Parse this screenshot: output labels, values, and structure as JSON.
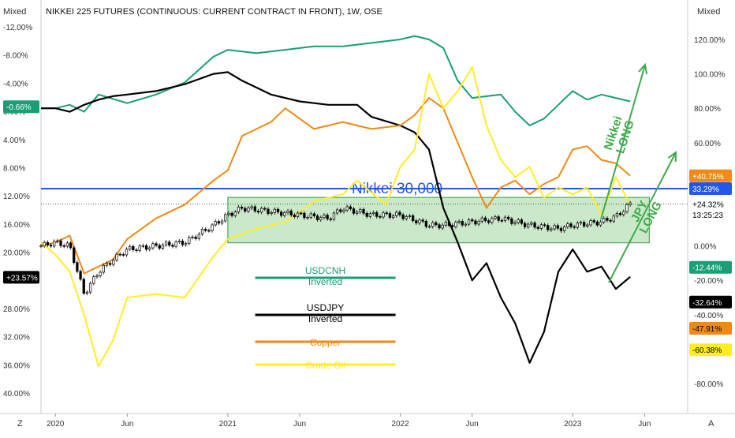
{
  "title": "NIKKEI 225 FUTURES (CONTINUOUS: CURRENT CONTRACT IN FRONT), 1W, OSE",
  "left_scale_label": "Mixed",
  "right_scale_label": "Mixed",
  "corner_left": "Z",
  "corner_right": "A",
  "colors": {
    "usdcnh": "#1a9e75",
    "usdjpy": "#000000",
    "copper": "#f08a14",
    "crude": "#ffee22",
    "candle": "#000000",
    "nikkei_line": "#2357e6",
    "box_fill": "#9fd69f",
    "box_stroke": "#2e9e3e",
    "arrow": "#3faa4b",
    "right_last_nikkei_bg": "#000000",
    "right_last_nikkei_line_bg": "#2357e6"
  },
  "annotations": {
    "nikkei_level": "Nikkei 30,000",
    "arrow1_text": [
      "Nikkei",
      "LONG"
    ],
    "arrow2_text": [
      "JPY",
      "LONG"
    ]
  },
  "legend": [
    {
      "key": "usdcnh",
      "lines": [
        "USDCNH",
        "Inverted"
      ]
    },
    {
      "key": "usdjpy",
      "lines": [
        "USDJPY",
        "Inverted"
      ]
    },
    {
      "key": "copper",
      "lines": [
        "Copper"
      ]
    },
    {
      "key": "crude",
      "lines": [
        "Crude Oil"
      ]
    }
  ],
  "chart_data": {
    "type": "line",
    "title": "NIKKEI 225 FUTURES (CONTINUOUS: CURRENT CONTRACT IN FRONT), 1W, OSE",
    "x_ticks": [
      "2020",
      "Jun",
      "2021",
      "Jun",
      "2022",
      "Jun",
      "2023",
      "Jun"
    ],
    "left_axis": {
      "ticks": [
        "-12.00%",
        "-8.00%",
        "-4.00%",
        "0.00%",
        "4.00%",
        "8.00%",
        "12.00%",
        "16.00%",
        "20.00%",
        "24.00%",
        "28.00%",
        "32.00%",
        "36.00%",
        "40.00%"
      ],
      "range": [
        -12,
        40
      ],
      "inverted": true
    },
    "right_axis": {
      "ticks": [
        "120.00%",
        "100.00%",
        "80.00%",
        "60.00%",
        "40.00%",
        "20.00%",
        "0.00%",
        "-20.00%",
        "-40.00%",
        "-60.00%",
        "-80.00%"
      ],
      "range": [
        -80,
        120
      ]
    },
    "reference_line": {
      "label": "Nikkei 30,000",
      "right_value": 33.29
    },
    "highlight_band": {
      "left_axis_range": [
        12.0,
        18.0
      ],
      "note": "range box Jan 2021 – May 2023"
    },
    "last_values": [
      {
        "label": "-0.66%",
        "axis": "left",
        "series": "usdcnh"
      },
      {
        "label": "+23.57%",
        "axis": "left",
        "series": "usdjpy"
      },
      {
        "label": "+40.75%",
        "axis": "right",
        "series": "copper"
      },
      {
        "label": "33.29%",
        "axis": "right",
        "series": "nikkei_line"
      },
      {
        "label": "+24.32%",
        "axis": "right",
        "series": "nikkei"
      },
      {
        "label": "13:25:23",
        "axis": "right",
        "series": "nikkei"
      },
      {
        "label": "-12.44%",
        "axis": "right",
        "series": "usdcnh"
      },
      {
        "label": "-32.64%",
        "axis": "right",
        "series": "usdjpy"
      },
      {
        "label": "-47.91%",
        "axis": "right",
        "series": "copper"
      },
      {
        "label": "-60.38%",
        "axis": "right",
        "series": "crude"
      }
    ],
    "series": [
      {
        "name": "USDCNH Inverted",
        "key": "usdcnh",
        "x": [
          "2019-12",
          "2020-01",
          "2020-02",
          "2020-03",
          "2020-04",
          "2020-06",
          "2020-08",
          "2020-10",
          "2020-12",
          "2021-01",
          "2021-03",
          "2021-05",
          "2021-07",
          "2021-09",
          "2021-11",
          "2022-01",
          "2022-02",
          "2022-03",
          "2022-04",
          "2022-05",
          "2022-06",
          "2022-08",
          "2022-09",
          "2022-10",
          "2022-11",
          "2022-12",
          "2023-01",
          "2023-02",
          "2023-03",
          "2023-04",
          "2023-05"
        ],
        "values": [
          80,
          80,
          82,
          78,
          88,
          83,
          88,
          95,
          110,
          114,
          112,
          114,
          116,
          116,
          118,
          120,
          122,
          120,
          115,
          96,
          86,
          88,
          78,
          70,
          74,
          82,
          90,
          85,
          88,
          86,
          84
        ]
      },
      {
        "name": "USDJPY Inverted",
        "key": "usdjpy",
        "x": [
          "2019-12",
          "2020-01",
          "2020-02",
          "2020-03",
          "2020-04",
          "2020-05",
          "2020-06",
          "2020-08",
          "2020-10",
          "2020-12",
          "2021-01",
          "2021-02",
          "2021-04",
          "2021-06",
          "2021-08",
          "2021-10",
          "2021-11",
          "2022-01",
          "2022-02",
          "2022-03",
          "2022-04",
          "2022-05",
          "2022-06",
          "2022-07",
          "2022-08",
          "2022-09",
          "2022-10",
          "2022-11",
          "2022-12",
          "2023-01",
          "2023-02",
          "2023-03",
          "2023-04",
          "2023-05"
        ],
        "values": [
          80,
          80,
          78,
          82,
          85,
          87,
          88,
          90,
          94,
          100,
          101,
          96,
          88,
          84,
          82,
          82,
          75,
          70,
          66,
          56,
          22,
          2,
          -20,
          -10,
          -30,
          -45,
          -68,
          -50,
          -15,
          -2,
          -15,
          -12,
          -25,
          -18
        ]
      },
      {
        "name": "Copper",
        "key": "copper",
        "x": [
          "2019-12",
          "2020-01",
          "2020-02",
          "2020-03",
          "2020-04",
          "2020-05",
          "2020-06",
          "2020-07",
          "2020-08",
          "2020-10",
          "2020-12",
          "2021-01",
          "2021-02",
          "2021-03",
          "2021-04",
          "2021-05",
          "2021-07",
          "2021-09",
          "2021-11",
          "2022-01",
          "2022-02",
          "2022-03",
          "2022-04",
          "2022-05",
          "2022-06",
          "2022-07",
          "2022-08",
          "2022-09",
          "2022-10",
          "2022-11",
          "2022-12",
          "2023-01",
          "2023-02",
          "2023-03",
          "2023-04",
          "2023-05"
        ],
        "values": [
          0,
          2,
          6,
          -16,
          -12,
          -8,
          4,
          10,
          16,
          24,
          38,
          44,
          64,
          68,
          72,
          80,
          68,
          72,
          68,
          70,
          76,
          86,
          80,
          60,
          40,
          22,
          34,
          38,
          30,
          36,
          40,
          56,
          58,
          50,
          48,
          40.75
        ]
      },
      {
        "name": "Crude Oil",
        "key": "crude",
        "x": [
          "2019-12",
          "2020-01",
          "2020-02",
          "2020-03",
          "2020-04",
          "2020-05",
          "2020-06",
          "2020-08",
          "2020-10",
          "2020-12",
          "2021-01",
          "2021-03",
          "2021-05",
          "2021-07",
          "2021-09",
          "2021-10",
          "2021-12",
          "2022-01",
          "2022-02",
          "2022-03",
          "2022-04",
          "2022-05",
          "2022-06",
          "2022-07",
          "2022-08",
          "2022-09",
          "2022-10",
          "2022-11",
          "2022-12",
          "2023-01",
          "2023-02",
          "2023-03",
          "2023-04",
          "2023-05"
        ],
        "values": [
          2,
          -5,
          -15,
          -40,
          -70,
          -55,
          -30,
          -28,
          -30,
          -6,
          4,
          10,
          14,
          26,
          30,
          38,
          24,
          46,
          56,
          100,
          80,
          90,
          104,
          70,
          50,
          40,
          46,
          28,
          34,
          30,
          34,
          18,
          40,
          24
        ]
      },
      {
        "name": "Nikkei 225 Futures",
        "key": "nikkei",
        "x": [
          "2019-12",
          "2020-01",
          "2020-02",
          "2020-03",
          "2020-04",
          "2020-05",
          "2020-06",
          "2020-08",
          "2020-10",
          "2020-12",
          "2021-01",
          "2021-02",
          "2021-04",
          "2021-06",
          "2021-08",
          "2021-09",
          "2021-11",
          "2022-01",
          "2022-03",
          "2022-04",
          "2022-06",
          "2022-08",
          "2022-10",
          "2022-12",
          "2023-01",
          "2023-03",
          "2023-04",
          "2023-05"
        ],
        "values": [
          0,
          2,
          0,
          -28,
          -15,
          -8,
          -2,
          0,
          2,
          12,
          18,
          22,
          20,
          18,
          16,
          22,
          18,
          18,
          12,
          12,
          14,
          16,
          12,
          10,
          12,
          14,
          17,
          24.32
        ]
      }
    ]
  }
}
